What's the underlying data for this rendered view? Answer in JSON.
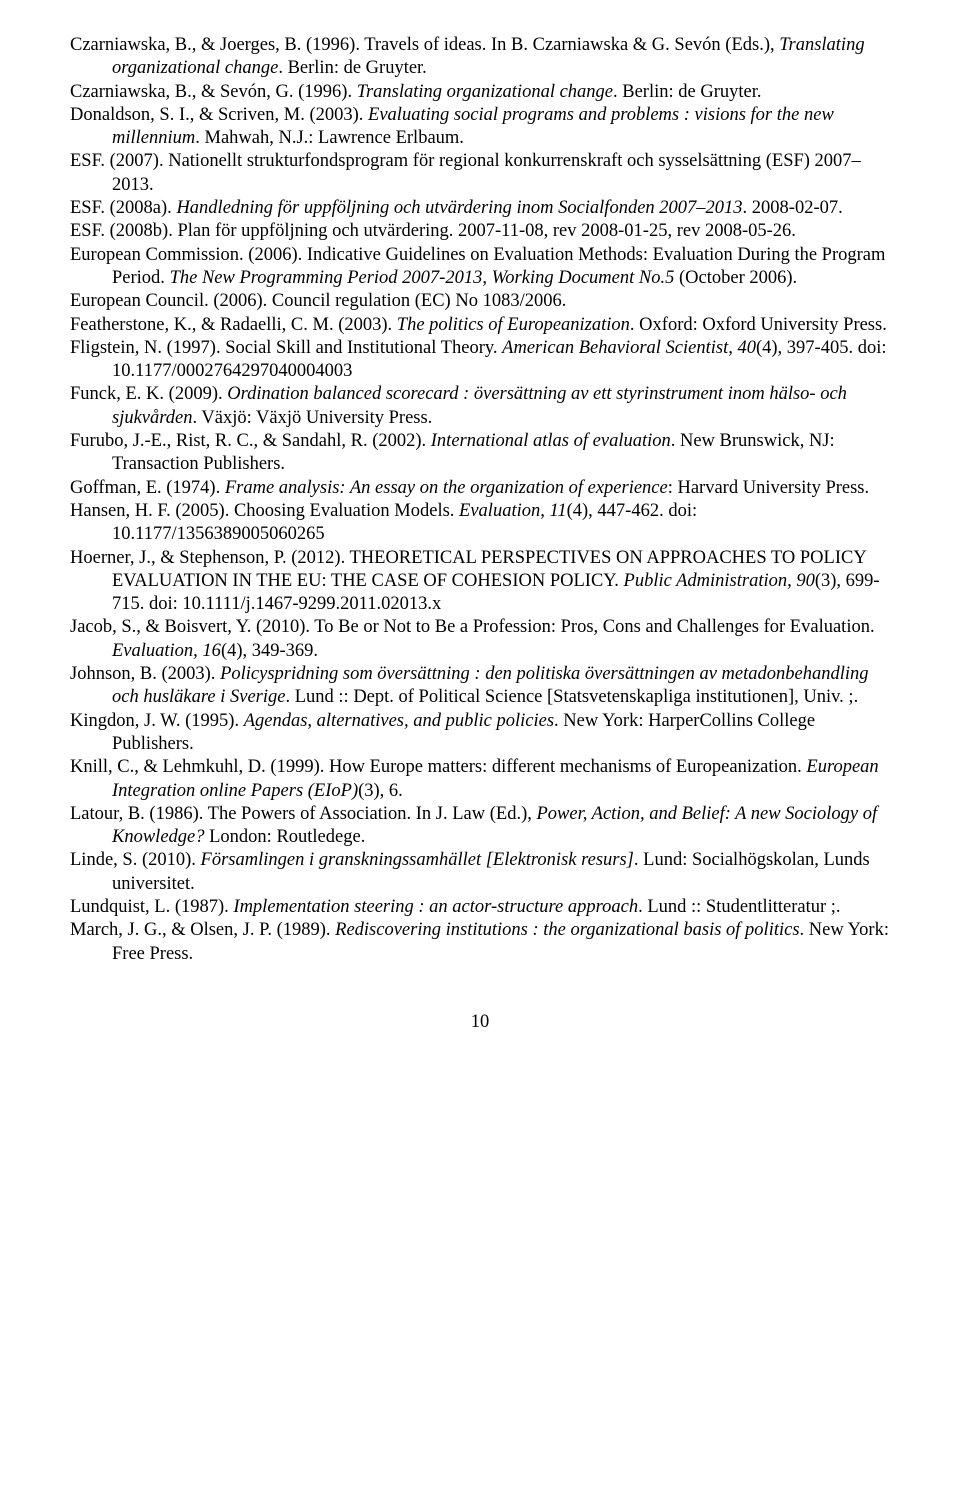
{
  "references": [
    {
      "html": "Czarniawska, B., & Joerges, B. (1996). Travels of ideas. In B. Czarniawska & G. Sevón (Eds.), <span class='italic'>Translating organizational change</span>. Berlin: de Gruyter."
    },
    {
      "html": "Czarniawska, B., & Sevón, G. (1996). <span class='italic'>Translating organizational change</span>. Berlin: de Gruyter."
    },
    {
      "html": "Donaldson, S. I., & Scriven, M. (2003). <span class='italic'>Evaluating social programs and problems : visions for the new millennium</span>. Mahwah, N.J.: Lawrence Erlbaum."
    },
    {
      "html": "ESF. (2007). Nationellt strukturfondsprogram för regional konkurrenskraft och sysselsättning (ESF) 2007–2013."
    },
    {
      "html": "ESF. (2008a). <span class='italic'>Handledning för uppföljning och utvärdering inom Socialfonden 2007–2013</span>. 2008-02-07."
    },
    {
      "html": "ESF. (2008b). Plan för uppföljning och utvärdering. 2007-11-08, rev 2008-01-25, rev 2008-05-26."
    },
    {
      "html": "European Commission. (2006). Indicative Guidelines on Evaluation Methods: Evaluation During the Program Period. <span class='italic'>The New Programming Period 2007-2013, Working Document No.5</span> (October 2006)."
    },
    {
      "html": "European Council. (2006). Council regulation (EC) No 1083/2006."
    },
    {
      "html": "Featherstone, K., & Radaelli, C. M. (2003). <span class='italic'>The politics of Europeanization</span>. Oxford: Oxford University Press."
    },
    {
      "html": "Fligstein, N. (1997). Social Skill and Institutional Theory. <span class='italic'>American Behavioral Scientist, 40</span>(4), 397-405. doi: 10.1177/0002764297040004003"
    },
    {
      "html": "Funck, E. K. (2009). <span class='italic'>Ordination balanced scorecard : översättning av ett styrinstrument inom hälso- och sjukvården</span>. Växjö: Växjö University Press."
    },
    {
      "html": "Furubo, J.-E., Rist, R. C., & Sandahl, R. (2002). <span class='italic'>International atlas of evaluation</span>. New Brunswick, NJ: Transaction Publishers."
    },
    {
      "html": "Goffman, E. (1974). <span class='italic'>Frame analysis: An essay on the organization of experience</span>: Harvard University Press."
    },
    {
      "html": "Hansen, H. F. (2005). Choosing Evaluation Models. <span class='italic'>Evaluation, 11</span>(4), 447-462. doi: 10.1177/1356389005060265"
    },
    {
      "html": "Hoerner, J., & Stephenson, P. (2012). THEORETICAL PERSPECTIVES ON APPROACHES TO POLICY EVALUATION IN THE EU: THE CASE OF COHESION POLICY. <span class='italic'>Public Administration, 90</span>(3), 699-715. doi: 10.1111/j.1467-9299.2011.02013.x"
    },
    {
      "html": "Jacob, S., & Boisvert, Y. (2010). To Be or Not to Be a Profession: Pros, Cons and Challenges for Evaluation. <span class='italic'>Evaluation, 16</span>(4), 349-369."
    },
    {
      "html": "Johnson, B. (2003). <span class='italic'>Policyspridning som översättning : den politiska översättningen av metadonbehandling och husläkare i Sverige</span>. Lund :: Dept. of Political Science [Statsvetenskapliga institutionen], Univ. ;."
    },
    {
      "html": "Kingdon, J. W. (1995). <span class='italic'>Agendas, alternatives, and public policies</span>. New York: HarperCollins College Publishers."
    },
    {
      "html": "Knill, C., & Lehmkuhl, D. (1999). How Europe matters: different mechanisms of Europeanization. <span class='italic'>European Integration online Papers (EIoP)</span>(3), 6."
    },
    {
      "html": "Latour, B. (1986). The Powers of Association. In J. Law (Ed.), <span class='italic'>Power, Action, and Belief: A new Sociology of Knowledge?</span> London: Routledege."
    },
    {
      "html": "Linde, S. (2010). <span class='italic'>Församlingen i granskningssamhället [Elektronisk resurs]</span>. Lund: Socialhögskolan, Lunds universitet."
    },
    {
      "html": "Lundquist, L. (1987). <span class='italic'>Implementation steering : an actor-structure approach</span>. Lund :: Studentlitteratur ;."
    },
    {
      "html": "March, J. G., & Olsen, J. P. (1989). <span class='italic'>Rediscovering institutions : the organizational basis of politics</span>. New York: Free Press."
    }
  ],
  "page_number": "10"
}
